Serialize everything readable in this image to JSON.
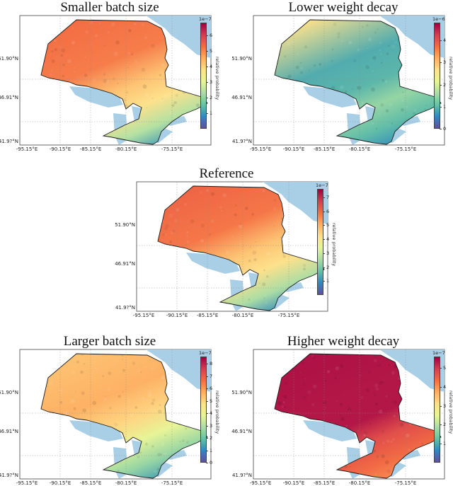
{
  "colorbar_label": "relative probability",
  "latitudes": [
    "51.90°N",
    "46.91°N",
    "41.9?°N"
  ],
  "longitudes": [
    "-95.15°E",
    "-90.15°E",
    "-85.15°E",
    "-80.15°E",
    "-75.15°E"
  ],
  "colors": {
    "water": "#a9cfe6",
    "frame": "#444444",
    "spectral": [
      "#5e4fa2",
      "#3288bd",
      "#66c2a5",
      "#abdda4",
      "#e6f598",
      "#fee08b",
      "#fdae61",
      "#f46d43",
      "#d53e4f",
      "#9e0142"
    ]
  },
  "panels": [
    {
      "id": "smaller",
      "title": "Smaller batch size",
      "exp": "1e−7",
      "ticks": [
        "6",
        "5",
        "4",
        "3",
        "2",
        "1"
      ],
      "vmax": 6.8,
      "levels": {
        "north": 0.78,
        "interior": 0.75,
        "west": 0.62,
        "neck": 0.55,
        "south": 0.15
      }
    },
    {
      "id": "lower_wd",
      "title": "Lower weight decay",
      "exp": "1e−6",
      "ticks": [
        "4",
        "3",
        "2",
        "1",
        "0"
      ],
      "vmax": 4.8,
      "levels": {
        "north": 0.55,
        "interior": 0.18,
        "west": 0.2,
        "neck": 0.3,
        "south": 0.12
      }
    },
    {
      "id": "reference",
      "title": "Reference",
      "exp": "1e−7",
      "ticks": [
        "7",
        "6",
        "5",
        "4",
        "3",
        "2",
        "1"
      ],
      "vmax": 7.6,
      "levels": {
        "north": 0.8,
        "interior": 0.76,
        "west": 0.62,
        "neck": 0.55,
        "south": 0.12
      }
    },
    {
      "id": "larger",
      "title": "Larger batch size",
      "exp": "1e−7",
      "ticks": [
        "8",
        "7",
        "6",
        "5",
        "4",
        "3",
        "2",
        "1",
        "0"
      ],
      "vmax": 8.6,
      "levels": {
        "north": 0.62,
        "interior": 0.66,
        "west": 0.58,
        "neck": 0.45,
        "south": 0.15
      }
    },
    {
      "id": "higher_wd",
      "title": "Higher weight decay",
      "exp": "1e−7",
      "ticks": [
        "5",
        "4",
        "3",
        "2",
        "1"
      ],
      "vmax": 5.6,
      "levels": {
        "north": 0.97,
        "interior": 0.96,
        "west": 0.96,
        "neck": 0.85,
        "south": 0.72
      }
    }
  ]
}
